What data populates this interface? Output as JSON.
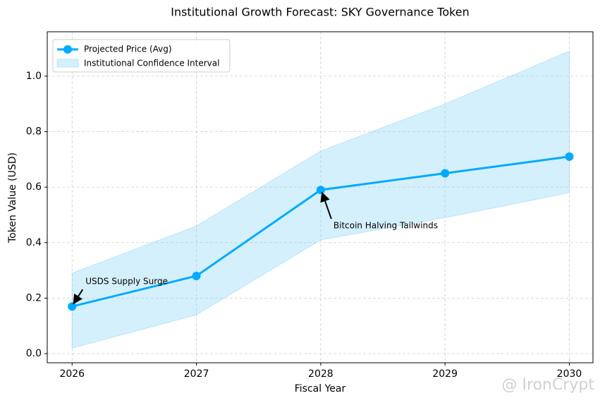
{
  "chart_data": {
    "type": "line",
    "title": "Institutional Growth Forecast: SKY Governance Token",
    "x_label": "Fiscal Year",
    "y_label": "Token Value (USD)",
    "x": [
      2026,
      2027,
      2028,
      2029,
      2030
    ],
    "series": [
      {
        "name": "Projected Price (Avg)",
        "color": "#00aaff",
        "values": [
          0.17,
          0.28,
          0.59,
          0.65,
          0.71
        ]
      }
    ],
    "band": {
      "name": "Institutional Confidence Interval",
      "color": "#87d3f8",
      "lower": [
        0.02,
        0.14,
        0.41,
        0.49,
        0.58
      ],
      "upper": [
        0.29,
        0.46,
        0.73,
        0.9,
        1.09
      ]
    },
    "xlim": [
      2025.8,
      2030.19
    ],
    "ylim": [
      -0.033,
      1.16
    ],
    "xticks": [
      2026,
      2027,
      2028,
      2029,
      2030
    ],
    "yticks": [
      {
        "value": 0,
        "label": "0.0"
      },
      0.2,
      0.4,
      0.6,
      0.8,
      {
        "value": 1,
        "label": "1.0"
      }
    ],
    "grid": true,
    "legend": "upper left",
    "annotations": [
      {
        "text": "USDS Supply Surge",
        "x": 2026,
        "y": 0.17
      },
      {
        "text": "Bitcoin Halving Tailwinds",
        "x": 2028,
        "y": 0.59
      }
    ]
  },
  "watermark": "@ IronCrypt"
}
